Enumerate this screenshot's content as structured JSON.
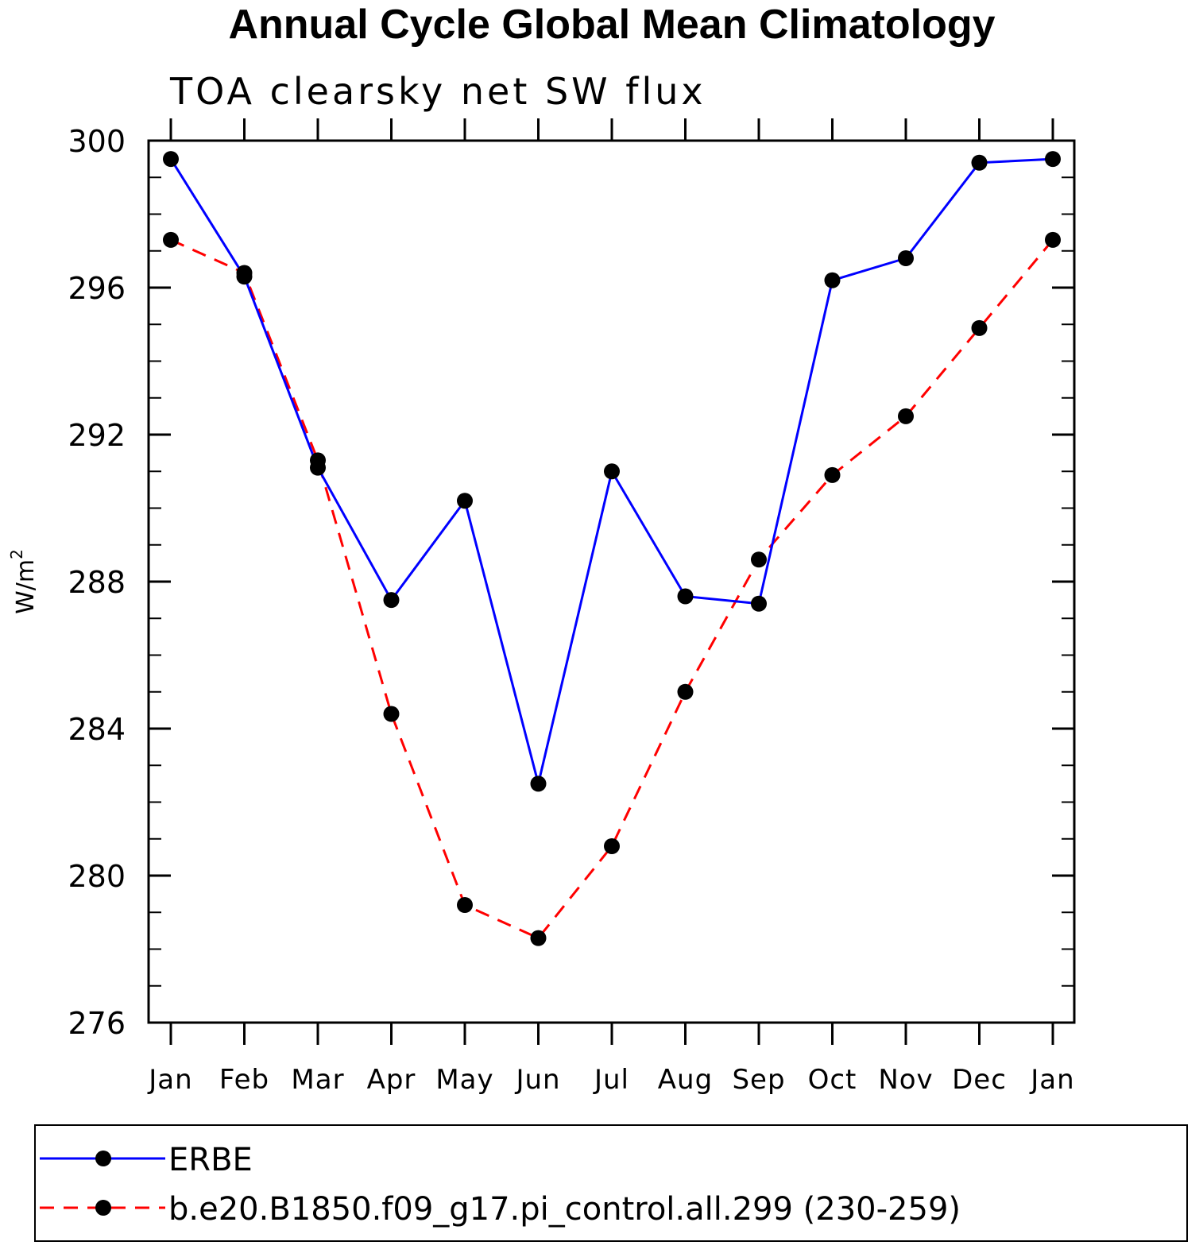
{
  "chart_data": {
    "type": "line",
    "title": "Annual Cycle Global Mean Climatology",
    "subtitle": "TOA clearsky net SW flux",
    "xlabel": "",
    "ylabel": "W/m",
    "ylabel_superscript": "2",
    "categories": [
      "Jan",
      "Feb",
      "Mar",
      "Apr",
      "May",
      "Jun",
      "Jul",
      "Aug",
      "Sep",
      "Oct",
      "Nov",
      "Dec",
      "Jan"
    ],
    "ylim": [
      276,
      300
    ],
    "yticks": [
      276,
      280,
      284,
      288,
      292,
      296,
      300
    ],
    "ytick_labels": [
      "276",
      "280",
      "284",
      "288",
      "292",
      "296",
      "300"
    ],
    "grid": false,
    "legend_position": "bottom",
    "series": [
      {
        "name": "ERBE",
        "color": "#0000ff",
        "line_style": "solid",
        "marker": "filled-circle",
        "values": [
          299.5,
          296.3,
          291.1,
          287.5,
          290.2,
          282.5,
          291.0,
          287.6,
          287.4,
          296.2,
          296.8,
          299.4,
          299.5
        ]
      },
      {
        "name": "b.e20.B1850.f09_g17.pi_control.all.299 (230-259)",
        "color": "#ff0000",
        "line_style": "dashed",
        "marker": "filled-circle",
        "values": [
          297.3,
          296.4,
          291.3,
          284.4,
          279.2,
          278.3,
          280.8,
          285.0,
          288.6,
          290.9,
          292.5,
          294.9,
          297.3
        ]
      }
    ]
  }
}
